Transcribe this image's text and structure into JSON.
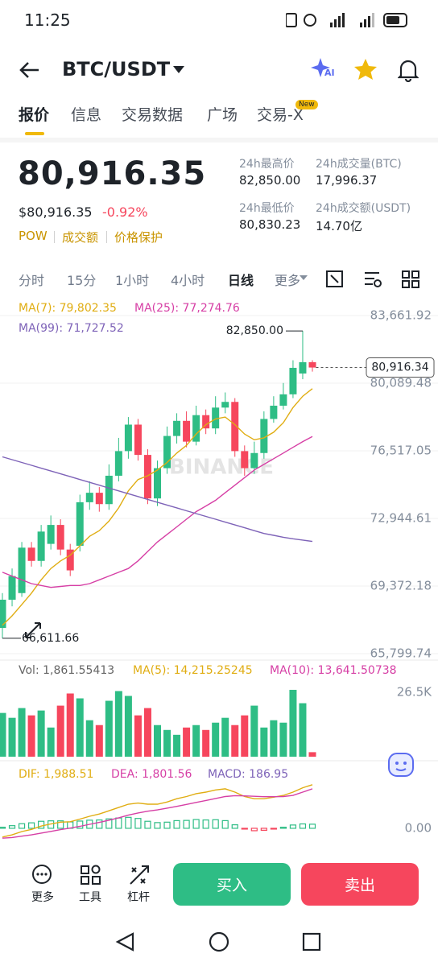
{
  "status_bar": {
    "time": "11:25"
  },
  "header": {
    "pair": "BTC/USDT",
    "ai_icon": "AI"
  },
  "tabs": [
    "报价",
    "信息",
    "交易数据",
    "广场",
    "交易-X"
  ],
  "tab_badge": "New",
  "price": {
    "last": "80,916.35",
    "usd": "$80,916.35",
    "change": "-0.92%",
    "tags": [
      "POW",
      "成交额",
      "价格保护"
    ]
  },
  "stats": [
    {
      "label": "24h最高价",
      "value": "82,850.00"
    },
    {
      "label": "24h成交量(BTC)",
      "value": "17,996.37"
    },
    {
      "label": "24h最低价",
      "value": "80,830.23"
    },
    {
      "label": "24h成交额(USDT)",
      "value": "14.70亿"
    }
  ],
  "intervals": [
    "分时",
    "15分",
    "1小时",
    "4小时",
    "日线",
    "更多"
  ],
  "chart_data": [
    {
      "type": "candlestick",
      "up_color": "#2ebd85",
      "down_color": "#f6465d",
      "grid": true,
      "watermark": "BINANCE",
      "open": [
        67160,
        68650,
        69000,
        71400,
        70700,
        71600,
        72600,
        71300,
        71500,
        73800,
        74300,
        73700,
        75200,
        76500,
        77900,
        76300,
        74000,
        75600,
        77300,
        78100,
        77000,
        78400,
        77700,
        78800,
        79100,
        76500,
        75600,
        76400,
        78200,
        78900,
        79500,
        80600,
        81200
      ],
      "high": [
        69000,
        70300,
        71700,
        71700,
        72600,
        73100,
        72900,
        71600,
        74200,
        74900,
        74600,
        75800,
        77200,
        78300,
        78200,
        76600,
        76000,
        77800,
        78500,
        78600,
        78900,
        78700,
        79400,
        79600,
        79300,
        76800,
        77000,
        78600,
        79400,
        80100,
        81300,
        82850,
        81300
      ],
      "low": [
        66611.66,
        68300,
        68800,
        70400,
        70400,
        71300,
        71000,
        69900,
        71200,
        73400,
        73300,
        73400,
        74900,
        76100,
        76000,
        73700,
        73600,
        75300,
        76900,
        76700,
        76800,
        77400,
        77400,
        78500,
        76200,
        75200,
        75300,
        76100,
        78000,
        78700,
        79300,
        80300,
        80700
      ],
      "close": [
        68650,
        69900,
        71400,
        70700,
        72250,
        72600,
        71300,
        70200,
        73800,
        74300,
        73700,
        75200,
        76500,
        77900,
        76300,
        74000,
        75600,
        77300,
        78100,
        77000,
        78400,
        77700,
        78800,
        79100,
        76500,
        75600,
        76400,
        78200,
        78900,
        79500,
        80900,
        81200,
        80916.34
      ],
      "series": [
        {
          "name": "MA(7): 79,802.35",
          "color": "#e0ad12",
          "values": [
            67300,
            67800,
            68400,
            69000,
            69700,
            70300,
            70700,
            71000,
            71500,
            72000,
            72300,
            72800,
            73500,
            74400,
            75000,
            75200,
            75500,
            75900,
            76400,
            76800,
            77400,
            77900,
            78200,
            78300,
            77900,
            77400,
            77100,
            77200,
            77500,
            78000,
            78800,
            79400,
            79802.35
          ]
        },
        {
          "name": "MA(25): 77,274.76",
          "color": "#d63fa5",
          "values": [
            70100,
            69900,
            69700,
            69500,
            69400,
            69300,
            69350,
            69400,
            69400,
            69500,
            69700,
            69900,
            70100,
            70300,
            70700,
            71200,
            71700,
            72100,
            72500,
            72900,
            73300,
            73600,
            73900,
            74300,
            74700,
            75100,
            75500,
            75800,
            76100,
            76400,
            76700,
            77000,
            77274.76
          ]
        },
        {
          "name": "MA(99): 71,727.52",
          "color": "#7e63b8",
          "values": [
            76200,
            76050,
            75900,
            75750,
            75600,
            75450,
            75300,
            75150,
            75000,
            74850,
            74700,
            74550,
            74400,
            74250,
            74100,
            73950,
            73800,
            73650,
            73500,
            73350,
            73200,
            73050,
            72900,
            72750,
            72600,
            72450,
            72300,
            72150,
            72050,
            71950,
            71870,
            71800,
            71727.52
          ]
        }
      ],
      "ylim": [
        65799.74,
        83661.92
      ],
      "yticks": [
        {
          "value": 65799.74,
          "label": "65,799.74"
        },
        {
          "value": 69372.18,
          "label": "69,372.18"
        },
        {
          "value": 72944.61,
          "label": "72,944.61"
        },
        {
          "value": 76517.05,
          "label": "76,517.05"
        },
        {
          "value": 80089.48,
          "label": "80,089.48"
        },
        {
          "value": 83661.92,
          "label": "83,661.92"
        }
      ],
      "annotations": [
        {
          "value": 82850,
          "label": "82,850.00"
        },
        {
          "value": 66611.66,
          "label": "66,611.66"
        },
        {
          "value": 80916.34,
          "label": "80,916.34"
        }
      ]
    },
    {
      "type": "volume",
      "legend": [
        {
          "name": "Vol: 1,861.55413",
          "color": "#666666"
        },
        {
          "name": "MA(5): 14,215.25245",
          "color": "#e0ad12"
        },
        {
          "name": "MA(10): 13,641.50738",
          "color": "#d63fa5"
        }
      ],
      "values": [
        18000,
        16000,
        20000,
        17000,
        19000,
        12000,
        21000,
        26000,
        24000,
        15000,
        13000,
        23000,
        27000,
        25000,
        17000,
        20000,
        13000,
        11000,
        9000,
        12000,
        13000,
        11000,
        14000,
        16000,
        13000,
        17000,
        21000,
        12000,
        15000,
        14000,
        27500,
        22000,
        1861.55413
      ],
      "ylim": [
        0,
        29800
      ],
      "yticks": [
        {
          "value": 26500,
          "label": "26.5K"
        }
      ]
    },
    {
      "type": "macd",
      "series": [
        {
          "name": "DIF: 1,988.51",
          "color": "#e0ad12",
          "values": [
            -400,
            -300,
            -150,
            -50,
            100,
            200,
            280,
            300,
            420,
            550,
            650,
            800,
            950,
            1100,
            1150,
            1100,
            1100,
            1200,
            1350,
            1450,
            1580,
            1650,
            1750,
            1800,
            1650,
            1450,
            1350,
            1350,
            1420,
            1500,
            1650,
            1850,
            1988.51
          ]
        },
        {
          "name": "DEA: 1,801.56",
          "color": "#d63fa5",
          "values": [
            -450,
            -420,
            -360,
            -300,
            -220,
            -140,
            -60,
            10,
            90,
            180,
            270,
            370,
            480,
            600,
            700,
            780,
            840,
            920,
            1000,
            1090,
            1180,
            1270,
            1360,
            1450,
            1490,
            1480,
            1460,
            1440,
            1440,
            1450,
            1500,
            1650,
            1801.56
          ]
        }
      ],
      "histogram": {
        "name": "MACD: 186.95",
        "color": "#7e63b8",
        "values": [
          50,
          120,
          210,
          250,
          320,
          340,
          340,
          290,
          330,
          370,
          380,
          430,
          470,
          500,
          450,
          320,
          260,
          280,
          350,
          360,
          400,
          380,
          390,
          350,
          160,
          -30,
          -110,
          -90,
          -20,
          50,
          150,
          200,
          186.95
        ]
      },
      "ylim": [
        -590,
        2900
      ],
      "yticks": [
        {
          "value": 0,
          "label": "0.00"
        }
      ]
    }
  ],
  "actions": [
    "更多",
    "工具",
    "杠杆"
  ],
  "buttons": {
    "buy": "买入",
    "sell": "卖出"
  }
}
